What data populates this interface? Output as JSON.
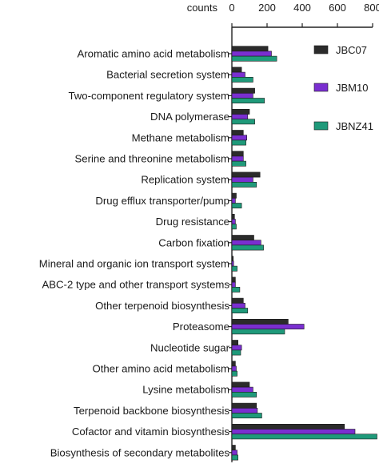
{
  "chart_data": {
    "type": "bar",
    "orientation": "horizontal",
    "title": "",
    "xlabel": "counts",
    "ylabel": "",
    "xlim": [
      0,
      800
    ],
    "xticks": [
      0,
      200,
      400,
      600,
      800
    ],
    "x_axis_position": "top",
    "grid": false,
    "legend_position": "right",
    "categories": [
      "Aromatic amino acid metabolism",
      "Bacterial secretion system",
      "Two-component regulatory system",
      "DNA polymerase",
      "Methane metabolism",
      "Serine and threonine metabolism",
      "Replication system",
      "Drug efflux transporter/pump",
      "Drug resistance",
      "Carbon fixation",
      "Mineral and organic ion transport system",
      "ABC-2 type and other transport systems",
      "Other terpenoid biosynthesis",
      "Proteasome",
      "Nucleotide sugar",
      "Other amino acid metabolism",
      "Lysine metabolism",
      "Terpenoid backbone biosynthesis",
      "Cofactor and vitamin biosynthesis",
      "Biosynthesis of secondary metabolites"
    ],
    "series": [
      {
        "name": "JBC07",
        "color": "#2b2b2b",
        "values": [
          205,
          55,
          130,
          100,
          65,
          65,
          160,
          25,
          15,
          125,
          8,
          20,
          65,
          320,
          35,
          20,
          100,
          140,
          640,
          20
        ]
      },
      {
        "name": "JBM10",
        "color": "#7a2fd0",
        "values": [
          225,
          75,
          120,
          90,
          85,
          65,
          120,
          20,
          20,
          165,
          10,
          20,
          75,
          410,
          55,
          25,
          120,
          145,
          700,
          30
        ]
      },
      {
        "name": "JBNZ41",
        "color": "#1f9a7a",
        "values": [
          255,
          120,
          185,
          130,
          80,
          80,
          140,
          55,
          25,
          180,
          30,
          45,
          90,
          300,
          50,
          30,
          140,
          170,
          825,
          35
        ]
      }
    ]
  }
}
